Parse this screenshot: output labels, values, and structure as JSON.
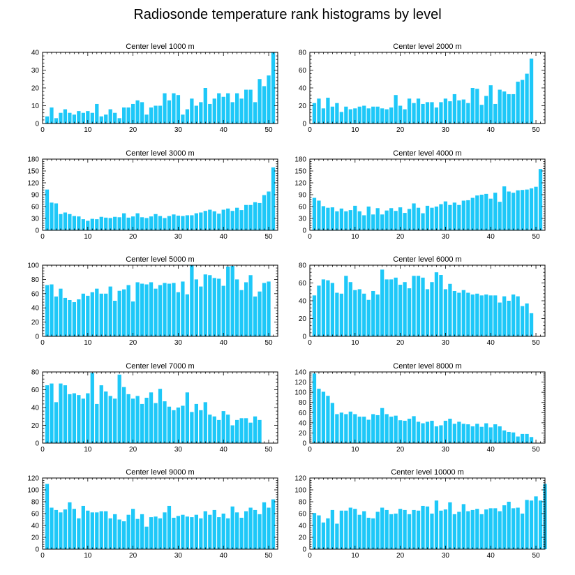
{
  "title": "Radiosonde temperature rank histograms by level",
  "bar_color": "#1EC8F8",
  "chart_data": [
    {
      "type": "bar",
      "title": "Center level 1000 m",
      "xlim": [
        0,
        52
      ],
      "ylim": [
        0,
        40
      ],
      "xticks": [
        0,
        10,
        20,
        30,
        40,
        50
      ],
      "yticks": [
        0,
        10,
        20,
        30,
        40
      ],
      "values": [
        4,
        9,
        3,
        6,
        8,
        6,
        5,
        7,
        6,
        7,
        6,
        11,
        4,
        5,
        8,
        6,
        3,
        9,
        9,
        11,
        13,
        12,
        5,
        9,
        10,
        10,
        17,
        13,
        17,
        16,
        5,
        8,
        14,
        10,
        12,
        20,
        11,
        14,
        17,
        15,
        17,
        12,
        17,
        14,
        19,
        19,
        12,
        25,
        21,
        27,
        40
      ]
    },
    {
      "type": "bar",
      "title": "Center level 2000 m",
      "xlim": [
        0,
        52
      ],
      "ylim": [
        0,
        80
      ],
      "xticks": [
        0,
        10,
        20,
        30,
        40,
        50
      ],
      "yticks": [
        0,
        20,
        40,
        60,
        80
      ],
      "values": [
        23,
        28,
        17,
        29,
        19,
        23,
        13,
        19,
        16,
        17,
        19,
        20,
        17,
        19,
        19,
        17,
        16,
        18,
        32,
        20,
        16,
        28,
        23,
        28,
        22,
        24,
        24,
        18,
        24,
        28,
        25,
        33,
        26,
        27,
        23,
        40,
        39,
        21,
        31,
        43,
        22,
        38,
        36,
        33,
        33,
        47,
        49,
        56,
        73
      ]
    },
    {
      "type": "bar",
      "title": "Center level 3000 m",
      "xlim": [
        0,
        52
      ],
      "ylim": [
        0,
        180
      ],
      "xticks": [
        0,
        10,
        20,
        30,
        40,
        50
      ],
      "yticks": [
        0,
        30,
        60,
        90,
        120,
        150,
        180
      ],
      "values": [
        103,
        70,
        68,
        41,
        45,
        41,
        36,
        35,
        28,
        24,
        29,
        28,
        34,
        32,
        31,
        34,
        33,
        43,
        32,
        35,
        43,
        33,
        31,
        35,
        41,
        36,
        31,
        36,
        40,
        37,
        36,
        38,
        38,
        43,
        45,
        49,
        52,
        48,
        42,
        52,
        55,
        49,
        57,
        51,
        64,
        64,
        71,
        69,
        89,
        98,
        159
      ]
    },
    {
      "type": "bar",
      "title": "Center level 4000 m",
      "xlim": [
        0,
        52
      ],
      "ylim": [
        0,
        180
      ],
      "xticks": [
        0,
        10,
        20,
        30,
        40,
        50
      ],
      "yticks": [
        0,
        30,
        60,
        90,
        120,
        150,
        180
      ],
      "values": [
        82,
        75,
        61,
        57,
        58,
        48,
        55,
        48,
        51,
        62,
        48,
        38,
        60,
        40,
        56,
        40,
        50,
        56,
        49,
        58,
        44,
        54,
        68,
        57,
        43,
        62,
        57,
        60,
        66,
        73,
        64,
        70,
        64,
        75,
        76,
        82,
        88,
        90,
        92,
        80,
        95,
        72,
        111,
        98,
        95,
        101,
        102,
        103,
        106,
        110,
        155
      ]
    },
    {
      "type": "bar",
      "title": "Center level 5000 m",
      "xlim": [
        0,
        52
      ],
      "ylim": [
        0,
        100
      ],
      "xticks": [
        0,
        10,
        20,
        30,
        40,
        50
      ],
      "yticks": [
        0,
        20,
        40,
        60,
        80,
        100
      ],
      "values": [
        72,
        73,
        56,
        67,
        54,
        51,
        48,
        52,
        60,
        57,
        62,
        67,
        60,
        60,
        70,
        50,
        64,
        66,
        72,
        49,
        76,
        74,
        73,
        76,
        67,
        72,
        75,
        74,
        75,
        62,
        77,
        59,
        100,
        80,
        70,
        87,
        86,
        82,
        81,
        71,
        98,
        99,
        80,
        65,
        76,
        86,
        56,
        63,
        75,
        77
      ]
    },
    {
      "type": "bar",
      "title": "Center level 6000 m",
      "xlim": [
        0,
        52
      ],
      "ylim": [
        0,
        80
      ],
      "xticks": [
        0,
        10,
        20,
        30,
        40,
        50
      ],
      "yticks": [
        0,
        20,
        40,
        60,
        80
      ],
      "values": [
        46,
        57,
        64,
        63,
        60,
        49,
        48,
        68,
        61,
        52,
        53,
        48,
        41,
        51,
        47,
        75,
        64,
        64,
        66,
        58,
        61,
        54,
        68,
        68,
        66,
        53,
        61,
        72,
        69,
        53,
        59,
        51,
        49,
        52,
        49,
        47,
        48,
        46,
        47,
        46,
        46,
        38,
        45,
        40,
        47,
        45,
        34,
        37,
        26
      ]
    },
    {
      "type": "bar",
      "title": "Center level 7000 m",
      "xlim": [
        0,
        52
      ],
      "ylim": [
        0,
        80
      ],
      "xticks": [
        0,
        10,
        20,
        30,
        40,
        50
      ],
      "yticks": [
        0,
        20,
        40,
        60,
        80
      ],
      "values": [
        65,
        67,
        46,
        67,
        65,
        55,
        56,
        54,
        50,
        56,
        79,
        44,
        65,
        58,
        53,
        50,
        77,
        63,
        55,
        50,
        53,
        44,
        51,
        57,
        45,
        61,
        47,
        41,
        37,
        40,
        42,
        57,
        35,
        44,
        37,
        46,
        32,
        30,
        26,
        36,
        32,
        20,
        26,
        28,
        28,
        23,
        30,
        26
      ]
    },
    {
      "type": "bar",
      "title": "Center level 8000 m",
      "xlim": [
        0,
        52
      ],
      "ylim": [
        0,
        140
      ],
      "xticks": [
        0,
        10,
        20,
        30,
        40,
        50
      ],
      "yticks": [
        0,
        20,
        40,
        60,
        80,
        100,
        120,
        140
      ],
      "values": [
        137,
        107,
        101,
        93,
        79,
        57,
        60,
        57,
        62,
        57,
        52,
        52,
        46,
        57,
        55,
        69,
        57,
        52,
        54,
        45,
        44,
        48,
        53,
        42,
        39,
        42,
        44,
        33,
        35,
        44,
        48,
        38,
        42,
        38,
        37,
        33,
        38,
        32,
        39,
        31,
        37,
        33,
        25,
        22,
        21,
        13,
        18,
        18,
        12
      ]
    },
    {
      "type": "bar",
      "title": "Center level 9000 m",
      "xlim": [
        0,
        52
      ],
      "ylim": [
        0,
        120
      ],
      "xticks": [
        0,
        10,
        20,
        30,
        40,
        50
      ],
      "yticks": [
        0,
        20,
        40,
        60,
        80,
        100,
        120
      ],
      "values": [
        110,
        70,
        66,
        62,
        67,
        79,
        68,
        52,
        73,
        65,
        62,
        62,
        64,
        64,
        52,
        59,
        50,
        47,
        58,
        68,
        51,
        59,
        38,
        54,
        55,
        52,
        62,
        73,
        53,
        56,
        58,
        55,
        54,
        58,
        52,
        64,
        58,
        66,
        54,
        60,
        52,
        72,
        62,
        53,
        64,
        70,
        66,
        59,
        79,
        70,
        84
      ]
    },
    {
      "type": "bar",
      "title": "Center level 10000 m",
      "xlim": [
        0,
        52
      ],
      "ylim": [
        0,
        120
      ],
      "xticks": [
        0,
        10,
        20,
        30,
        40,
        50
      ],
      "yticks": [
        0,
        20,
        40,
        60,
        80,
        100,
        120
      ],
      "values": [
        61,
        57,
        45,
        52,
        66,
        43,
        65,
        65,
        70,
        68,
        58,
        64,
        53,
        52,
        63,
        70,
        66,
        59,
        60,
        68,
        66,
        59,
        66,
        65,
        73,
        72,
        60,
        82,
        65,
        67,
        79,
        59,
        63,
        76,
        64,
        66,
        68,
        59,
        67,
        69,
        69,
        64,
        74,
        80,
        69,
        70,
        60,
        83,
        82,
        89,
        82,
        110
      ]
    }
  ]
}
